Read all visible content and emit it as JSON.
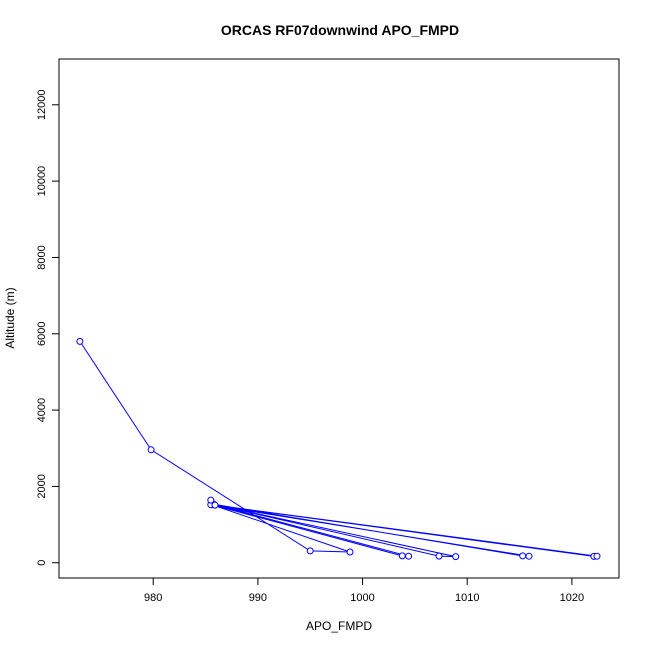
{
  "chart_data": {
    "type": "line",
    "title": "ORCAS RF07downwind APO_FMPD",
    "xlabel": "APO_FMPD",
    "ylabel": "Altitude (m)",
    "xlim": [
      971,
      1024.5
    ],
    "ylim": [
      -400,
      13200
    ],
    "x_ticks": [
      980,
      990,
      1000,
      1010,
      1020
    ],
    "y_ticks": [
      0,
      2000,
      4000,
      6000,
      8000,
      10000,
      12000
    ],
    "x_tick_labels": [
      "980",
      "990",
      "1000",
      "1010",
      "1020"
    ],
    "y_tick_labels": [
      "0",
      "2000",
      "4000",
      "6000",
      "8000",
      "10000",
      "12000"
    ],
    "grid": false,
    "series": [
      {
        "color": "#0000ff",
        "marker": "open-circle",
        "points": [
          {
            "x": 973.0,
            "y": 5800
          },
          {
            "x": 979.8,
            "y": 2960
          },
          {
            "x": 995.0,
            "y": 310
          },
          {
            "x": 998.8,
            "y": 280
          },
          {
            "x": 985.6,
            "y": 1520
          },
          {
            "x": 1003.8,
            "y": 180
          },
          {
            "x": 1004.4,
            "y": 170
          },
          {
            "x": 985.7,
            "y": 1540
          },
          {
            "x": 1007.3,
            "y": 175
          },
          {
            "x": 1008.9,
            "y": 160
          },
          {
            "x": 985.8,
            "y": 1530
          },
          {
            "x": 1015.3,
            "y": 180
          },
          {
            "x": 1015.9,
            "y": 170
          },
          {
            "x": 985.5,
            "y": 1520
          },
          {
            "x": 1022.1,
            "y": 165
          },
          {
            "x": 1022.4,
            "y": 170
          },
          {
            "x": 985.9,
            "y": 1510
          },
          {
            "x": 985.5,
            "y": 1640
          }
        ]
      }
    ]
  }
}
